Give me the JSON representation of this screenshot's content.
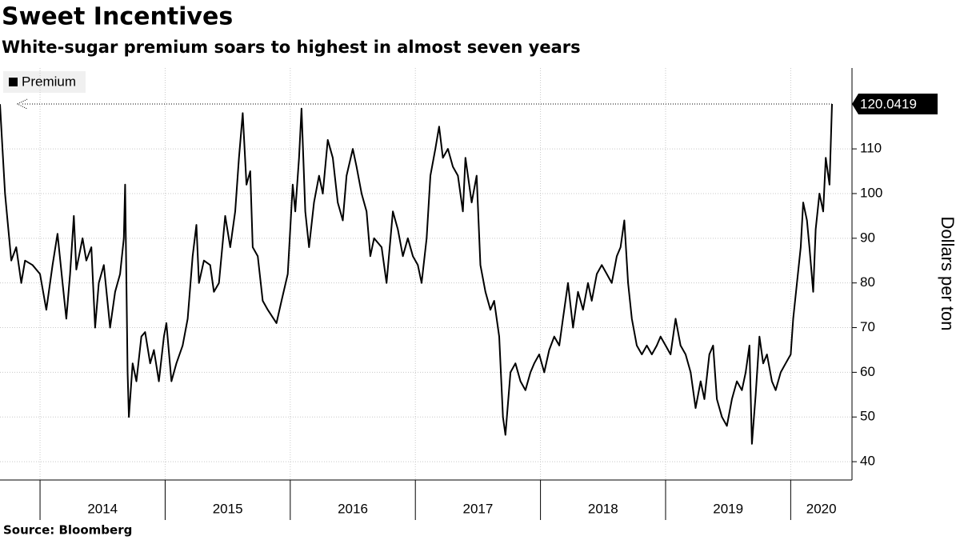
{
  "chart_data": {
    "type": "line",
    "title": "Sweet Incentives",
    "subtitle": "White-sugar premium soars to highest in almost seven years",
    "y_axis_label": "Dollars per ton",
    "source": "Source: Bloomberg",
    "x": [
      2013.68,
      2013.7,
      2013.72,
      2013.74,
      2013.77,
      2013.81,
      2013.85,
      2013.88,
      2013.94,
      2014.0,
      2014.05,
      2014.1,
      2014.14,
      2014.18,
      2014.21,
      2014.24,
      2014.27,
      2014.29,
      2014.34,
      2014.37,
      2014.41,
      2014.44,
      2014.47,
      2014.51,
      2014.56,
      2014.6,
      2014.64,
      2014.67,
      2014.68,
      2014.7,
      2014.71,
      2014.74,
      2014.77,
      2014.81,
      2014.84,
      2014.88,
      2014.91,
      2014.95,
      2014.99,
      2015.01,
      2015.05,
      2015.09,
      2015.14,
      2015.18,
      2015.22,
      2015.25,
      2015.27,
      2015.31,
      2015.36,
      2015.39,
      2015.43,
      2015.48,
      2015.52,
      2015.56,
      2015.59,
      2015.62,
      2015.65,
      2015.68,
      2015.7,
      2015.74,
      2015.78,
      2015.82,
      2015.89,
      2015.93,
      2015.98,
      2016.02,
      2016.04,
      2016.07,
      2016.09,
      2016.12,
      2016.15,
      2016.19,
      2016.23,
      2016.26,
      2016.3,
      2016.34,
      2016.38,
      2016.42,
      2016.45,
      2016.5,
      2016.53,
      2016.57,
      2016.61,
      2016.64,
      2016.67,
      2016.73,
      2016.77,
      2016.82,
      2016.86,
      2016.9,
      2016.94,
      2016.98,
      2017.02,
      2017.05,
      2017.09,
      2017.12,
      2017.16,
      2017.19,
      2017.22,
      2017.26,
      2017.3,
      2017.34,
      2017.38,
      2017.4,
      2017.45,
      2017.49,
      2017.52,
      2017.56,
      2017.6,
      2017.63,
      2017.67,
      2017.7,
      2017.72,
      2017.76,
      2017.8,
      2017.84,
      2017.88,
      2017.92,
      2017.95,
      2017.99,
      2018.03,
      2018.07,
      2018.11,
      2018.15,
      2018.18,
      2018.22,
      2018.26,
      2018.3,
      2018.34,
      2018.38,
      2018.41,
      2018.45,
      2018.49,
      2018.53,
      2018.57,
      2018.61,
      2018.64,
      2018.67,
      2018.7,
      2018.73,
      2018.77,
      2018.81,
      2018.85,
      2018.89,
      2018.93,
      2018.96,
      2019.0,
      2019.04,
      2019.08,
      2019.12,
      2019.16,
      2019.2,
      2019.24,
      2019.28,
      2019.31,
      2019.35,
      2019.38,
      2019.41,
      2019.45,
      2019.49,
      2019.53,
      2019.57,
      2019.61,
      2019.64,
      2019.67,
      2019.69,
      2019.72,
      2019.75,
      2019.78,
      2019.81,
      2019.85,
      2019.88,
      2019.92,
      2019.96,
      2020.0,
      2020.02,
      2020.05,
      2020.08,
      2020.1,
      2020.13,
      2020.15,
      2020.18,
      2020.2,
      2020.23,
      2020.26,
      2020.28,
      2020.31,
      2020.33
    ],
    "series": [
      {
        "name": "Premium",
        "color": "#000000",
        "values": [
          120,
          110,
          100,
          94,
          85,
          88,
          80,
          85,
          84,
          82,
          74,
          84,
          91,
          80,
          72,
          82,
          95,
          83,
          90,
          85,
          88,
          70,
          80,
          84,
          70,
          78,
          82,
          90,
          102,
          60,
          50,
          62,
          58,
          68,
          69,
          62,
          65,
          58,
          68,
          71,
          58,
          62,
          66,
          72,
          86,
          93,
          80,
          85,
          84,
          78,
          80,
          95,
          88,
          96,
          108,
          118,
          102,
          105,
          88,
          86,
          76,
          74,
          71,
          76,
          82,
          102,
          96,
          108,
          119,
          96,
          88,
          98,
          104,
          100,
          112,
          108,
          98,
          94,
          104,
          110,
          106,
          100,
          96,
          86,
          90,
          88,
          80,
          96,
          92,
          86,
          90,
          86,
          84,
          80,
          90,
          104,
          110,
          115,
          108,
          110,
          106,
          104,
          96,
          108,
          98,
          104,
          84,
          78,
          74,
          76,
          68,
          50,
          46,
          60,
          62,
          58,
          56,
          60,
          62,
          64,
          60,
          65,
          68,
          66,
          72,
          80,
          70,
          78,
          74,
          80,
          76,
          82,
          84,
          82,
          80,
          86,
          88,
          94,
          80,
          72,
          66,
          64,
          66,
          64,
          66,
          68,
          66,
          64,
          72,
          66,
          64,
          60,
          52,
          58,
          54,
          64,
          66,
          54,
          50,
          48,
          54,
          58,
          56,
          60,
          66,
          44,
          55,
          68,
          62,
          64,
          58,
          56,
          60,
          62,
          64,
          72,
          80,
          88,
          98,
          94,
          88,
          78,
          92,
          100,
          96,
          108,
          102,
          120.0419
        ]
      }
    ],
    "xlim": [
      2013.68,
      2020.49
    ],
    "xticks": [
      2014,
      2015,
      2016,
      2017,
      2018,
      2019,
      2020
    ],
    "ylim": [
      35.9,
      128.1
    ],
    "yticks": [
      40,
      50,
      60,
      70,
      80,
      90,
      100,
      110
    ],
    "grid": true
  }
}
